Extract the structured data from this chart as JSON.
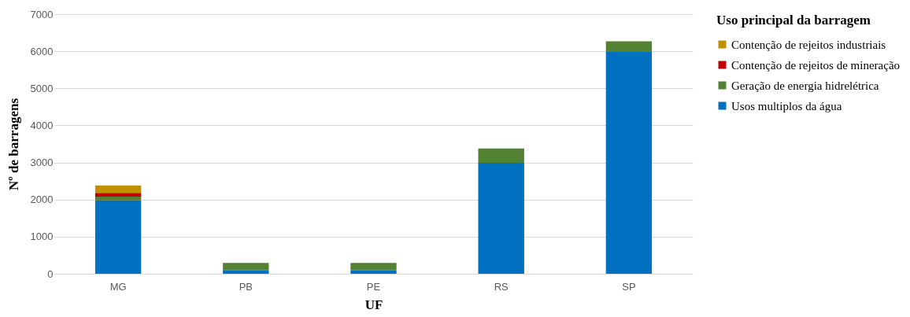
{
  "chart_data": {
    "type": "bar",
    "stacked": true,
    "xlabel": "UF",
    "ylabel": "Nº de barragens",
    "legend_title": "Uso principal da barragem",
    "legend": "right",
    "grid": "y",
    "categories": [
      "MG",
      "PB",
      "PE",
      "RS",
      "SP"
    ],
    "ylim": [
      0,
      7000
    ],
    "yticks": [
      0,
      1000,
      2000,
      3000,
      4000,
      5000,
      6000,
      7000
    ],
    "series": [
      {
        "name": "Usos multiplos da água",
        "color": "#0070c0",
        "values": [
          1980,
          90,
          90,
          2990,
          5980
        ]
      },
      {
        "name": "Geração de energia hidrelétrica",
        "color": "#548235",
        "values": [
          100,
          200,
          200,
          390,
          290
        ]
      },
      {
        "name": "Contenção de rejeitos de mineração",
        "color": "#c00000",
        "values": [
          100,
          null,
          null,
          null,
          null
        ]
      },
      {
        "name": "Contenção de rejeitos industriais",
        "color": "#bf9000",
        "values": [
          200,
          null,
          null,
          null,
          null
        ]
      }
    ]
  }
}
